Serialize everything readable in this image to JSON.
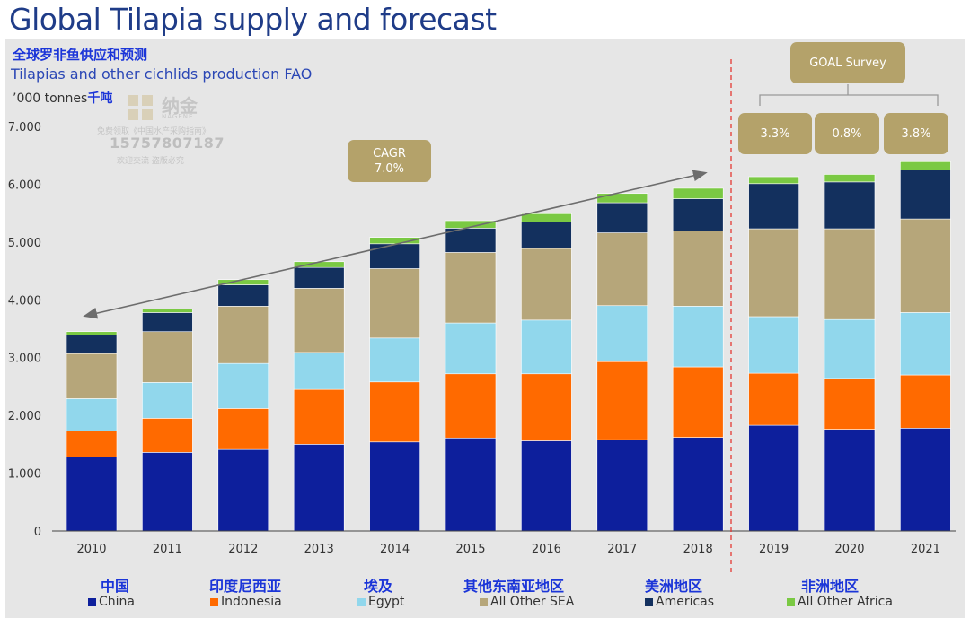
{
  "page": {
    "title": "Global Tilapia supply and forecast",
    "title_cn": "全球罗非鱼供应和预测",
    "subtitle": "Tilapias and other cichlids production FAO",
    "units": "’000 tonnes",
    "units_cn": "千吨"
  },
  "watermark": {
    "brand": "纳金",
    "brand_sub": "NAGENE",
    "line1": "免费领取《中国水产采购指南》",
    "phone": "15757807187",
    "line2": "欢迎交流 盗版必究"
  },
  "annotations": {
    "cagr_label": "CAGR",
    "cagr_value": "7.0%",
    "goal_label": "GOAL Survey",
    "growth": [
      "3.3%",
      "0.8%",
      "3.8%"
    ]
  },
  "legend_cn": {
    "China": "中国",
    "Indonesia": "印度尼西亚",
    "Egypt": "埃及",
    "All Other SEA": "其他东南亚地区",
    "Americas": "美洲地区",
    "All Other Africa": "非洲地区"
  },
  "colors": {
    "China": "#0d1f9c",
    "Indonesia": "#ff6a00",
    "Egypt": "#91d7ec",
    "All Other SEA": "#b6a67a",
    "Americas": "#13305e",
    "All Other Africa": "#7ac943",
    "box": "#b4a26a",
    "divider": "#e53935"
  },
  "chart_data": {
    "type": "bar",
    "stacked": true,
    "categories": [
      "2010",
      "2011",
      "2012",
      "2013",
      "2014",
      "2015",
      "2016",
      "2017",
      "2018",
      "2019",
      "2020",
      "2021"
    ],
    "ylim": [
      0,
      7000
    ],
    "yticks": [
      0,
      1000,
      2000,
      3000,
      4000,
      5000,
      6000,
      7000
    ],
    "ytick_labels": [
      "0",
      "1.000",
      "2.000",
      "3.000",
      "4.000",
      "5.000",
      "6.000",
      "7.000"
    ],
    "grid": false,
    "legend_position": "bottom",
    "series": [
      {
        "name": "China",
        "values": [
          1280,
          1360,
          1410,
          1500,
          1540,
          1610,
          1560,
          1580,
          1620,
          1830,
          1760,
          1780
        ]
      },
      {
        "name": "Indonesia",
        "values": [
          450,
          590,
          710,
          950,
          1040,
          1110,
          1160,
          1350,
          1220,
          900,
          880,
          920
        ]
      },
      {
        "name": "Egypt",
        "values": [
          560,
          620,
          780,
          640,
          760,
          880,
          930,
          970,
          1050,
          980,
          1020,
          1080
        ]
      },
      {
        "name": "All Other SEA",
        "values": [
          780,
          880,
          990,
          1110,
          1200,
          1220,
          1240,
          1260,
          1300,
          1520,
          1570,
          1620
        ]
      },
      {
        "name": "Americas",
        "values": [
          320,
          330,
          370,
          360,
          430,
          420,
          460,
          520,
          560,
          780,
          810,
          850
        ]
      },
      {
        "name": "All Other Africa",
        "values": [
          60,
          60,
          90,
          100,
          110,
          130,
          140,
          160,
          180,
          120,
          130,
          140
        ]
      }
    ]
  }
}
